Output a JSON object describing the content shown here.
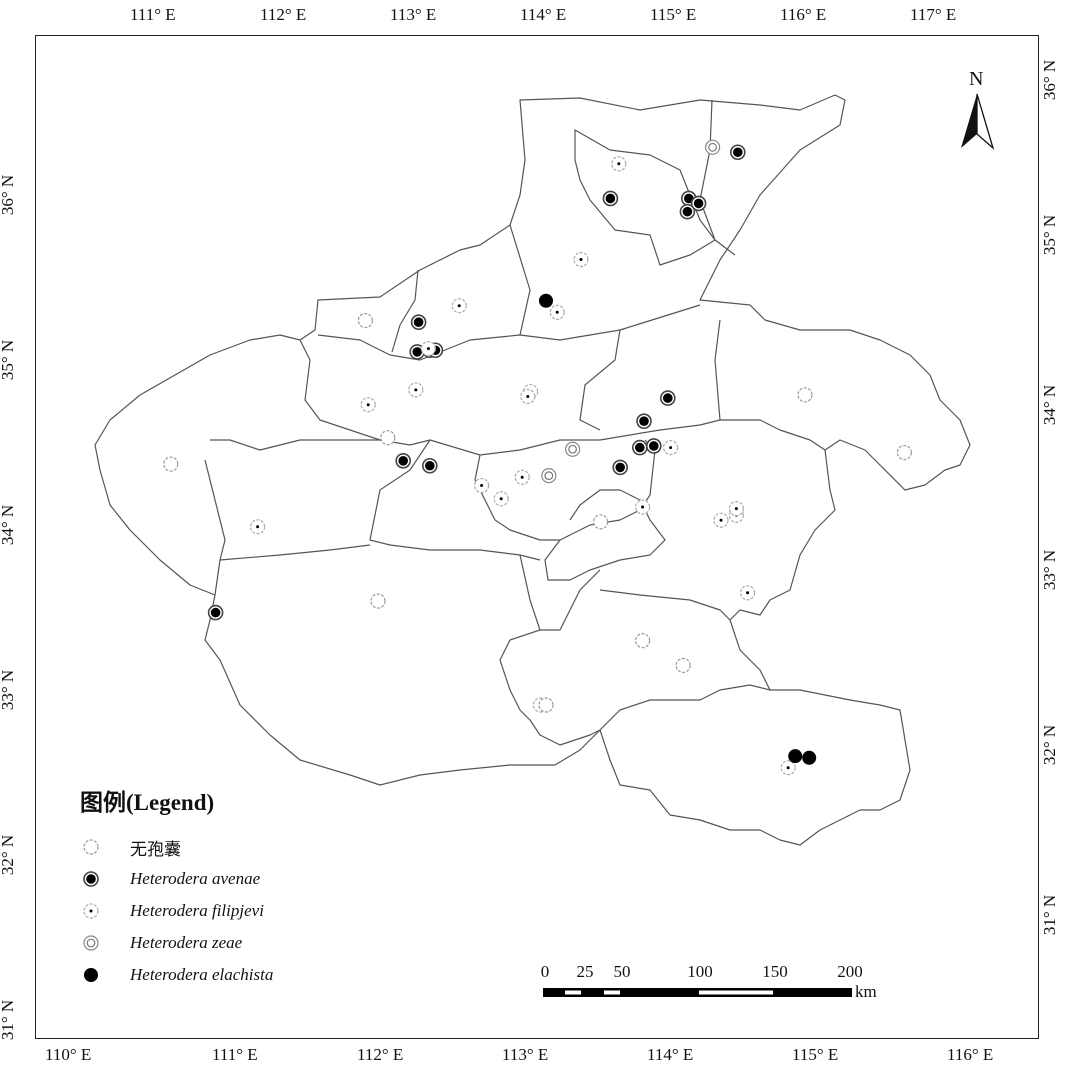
{
  "map": {
    "top_ticks": [
      "111° E",
      "112° E",
      "113° E",
      "114° E",
      "115° E",
      "116° E",
      "117° E"
    ],
    "bottom_ticks": [
      "110° E",
      "111° E",
      "112° E",
      "113° E",
      "114° E",
      "115° E",
      "116° E"
    ],
    "left_ticks": [
      "36° N",
      "35° N",
      "34° N",
      "33° N",
      "32° N",
      "31° N"
    ],
    "right_ticks": [
      "36° N",
      "35° N",
      "34° N",
      "33° N",
      "32° N",
      "31° N"
    ],
    "north_label": "N",
    "boundary_color": "#555555",
    "sites": {
      "avenae": [
        [
          114.77,
          36.35
        ],
        [
          113.86,
          36.07
        ],
        [
          114.42,
          36.07
        ],
        [
          114.49,
          36.04
        ],
        [
          114.41,
          35.99
        ],
        [
          112.49,
          35.32
        ],
        [
          112.48,
          35.14
        ],
        [
          112.57,
          35.15
        ],
        [
          112.61,
          35.15
        ],
        [
          114.27,
          34.86
        ],
        [
          114.1,
          34.72
        ],
        [
          114.07,
          34.56
        ],
        [
          114.17,
          34.57
        ],
        [
          113.93,
          34.44
        ],
        [
          112.38,
          34.48
        ],
        [
          112.57,
          34.45
        ],
        [
          111.04,
          33.56
        ]
      ],
      "filipjevi": [
        [
          113.92,
          36.28
        ],
        [
          113.65,
          35.7
        ],
        [
          112.78,
          35.42
        ],
        [
          113.48,
          35.38
        ],
        [
          112.56,
          35.16
        ],
        [
          112.47,
          34.91
        ],
        [
          112.13,
          34.82
        ],
        [
          113.29,
          34.9
        ],
        [
          113.27,
          34.87
        ],
        [
          114.29,
          34.56
        ],
        [
          112.94,
          34.33
        ],
        [
          113.08,
          34.25
        ],
        [
          113.23,
          34.38
        ],
        [
          111.34,
          34.08
        ],
        [
          114.09,
          34.2
        ],
        [
          114.65,
          34.12
        ],
        [
          114.76,
          34.15
        ],
        [
          114.76,
          34.19
        ],
        [
          114.84,
          33.68
        ],
        [
          113.36,
          33.0
        ],
        [
          115.13,
          32.62
        ]
      ],
      "zeae": [
        [
          114.59,
          36.38
        ],
        [
          113.59,
          34.55
        ],
        [
          113.42,
          34.39
        ]
      ],
      "none": [
        [
          112.11,
          35.33
        ],
        [
          112.27,
          34.62
        ],
        [
          110.72,
          34.46
        ],
        [
          115.25,
          34.88
        ],
        [
          115.96,
          34.53
        ],
        [
          113.79,
          34.11
        ],
        [
          112.2,
          33.63
        ],
        [
          114.09,
          33.39
        ],
        [
          114.38,
          33.24
        ],
        [
          113.4,
          33.0
        ]
      ],
      "elachista": [
        [
          113.4,
          35.45
        ],
        [
          115.18,
          32.69
        ],
        [
          115.28,
          32.68
        ]
      ]
    }
  },
  "legend": {
    "title": "图例(Legend)",
    "items": [
      {
        "key": "none",
        "label": "无孢囊"
      },
      {
        "key": "avenae",
        "label": "Heterodera avenae"
      },
      {
        "key": "filipjevi",
        "label": "Heterodera filipjevi"
      },
      {
        "key": "zeae",
        "label": "Heterodera zeae"
      },
      {
        "key": "elachista",
        "label": "Heterodera elachista"
      }
    ]
  },
  "scale_bar": {
    "labels": [
      "0",
      "25",
      "50",
      "100",
      "150",
      "200"
    ],
    "unit": "km"
  }
}
